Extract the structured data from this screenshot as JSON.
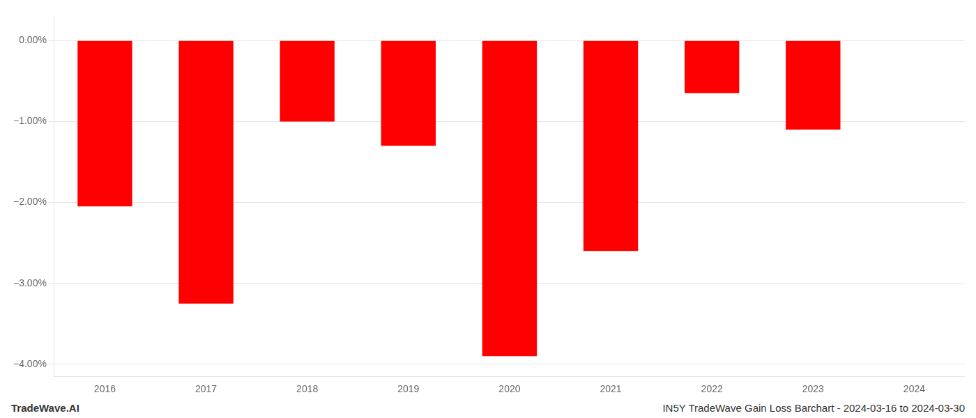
{
  "chart_data": {
    "type": "bar",
    "categories": [
      "2016",
      "2017",
      "2018",
      "2019",
      "2020",
      "2021",
      "2022",
      "2023",
      "2024"
    ],
    "values": [
      -2.05,
      -3.25,
      -1.0,
      -1.3,
      -3.9,
      -2.6,
      -0.65,
      -1.1,
      null
    ],
    "color": "#ff0000",
    "ylim": [
      -4.15,
      0.3
    ],
    "yticks": [
      {
        "value": 0.0,
        "label": "0.00%"
      },
      {
        "value": -1.0,
        "label": "−1.00%"
      },
      {
        "value": -2.0,
        "label": "−2.00%"
      },
      {
        "value": -3.0,
        "label": "−3.00%"
      },
      {
        "value": -4.0,
        "label": "−4.00%"
      }
    ],
    "grid": true,
    "annotations": [
      "TradeWave.AI",
      "IN5Y TradeWave Gain Loss Barchart - 2024-03-16 to 2024-03-30"
    ]
  }
}
